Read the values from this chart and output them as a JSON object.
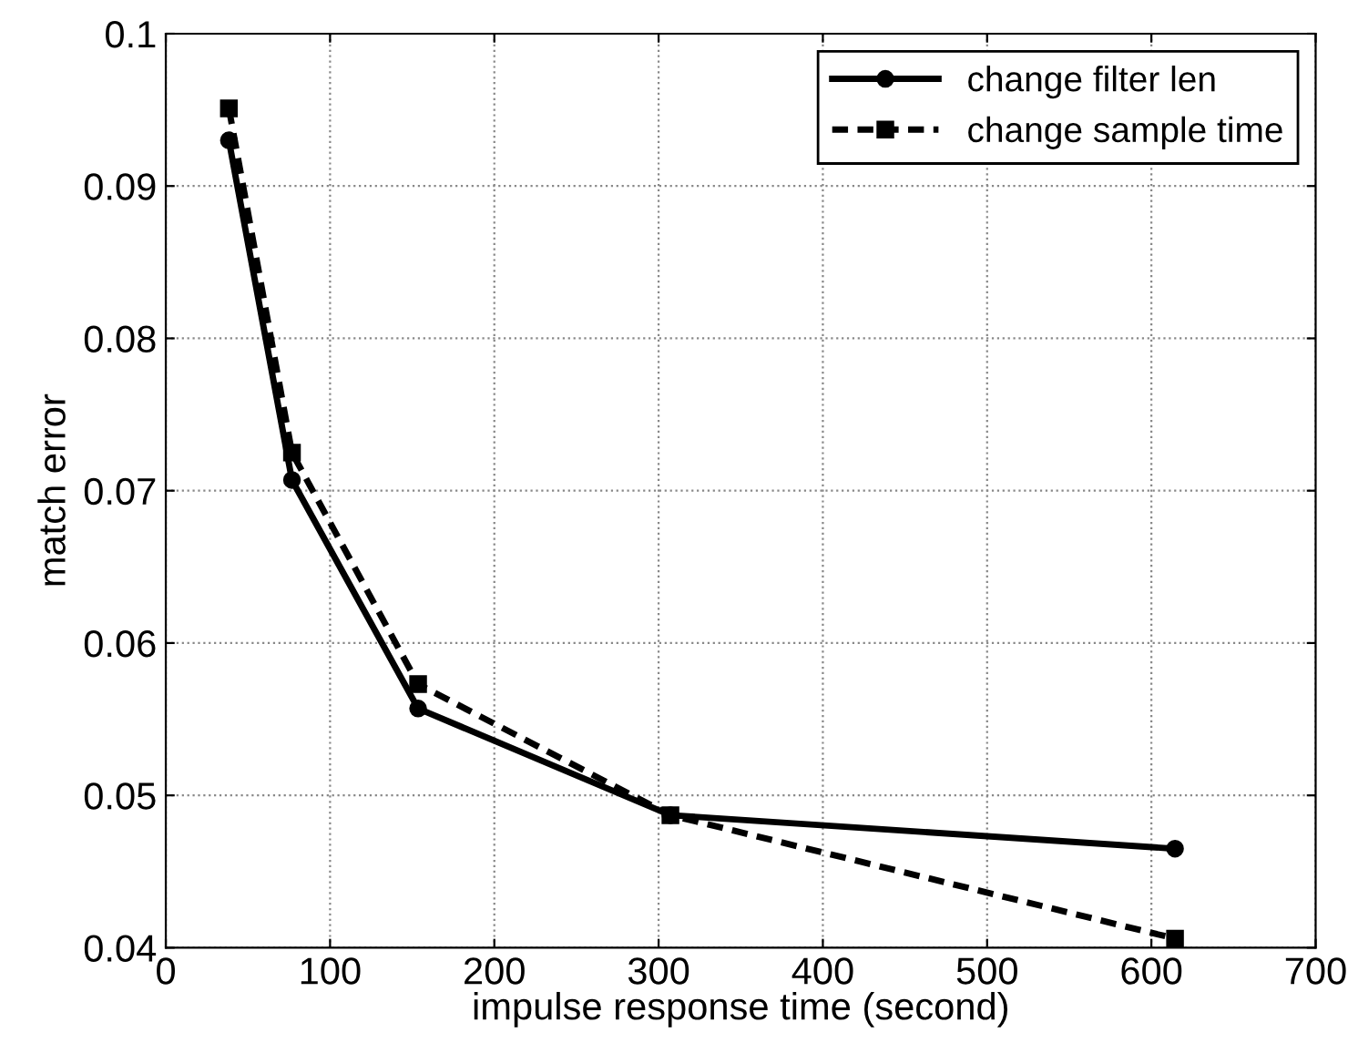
{
  "chart_data": {
    "type": "line",
    "xlabel": "impulse response time (second)",
    "ylabel": "match error",
    "x": [
      38.4,
      76.8,
      153.6,
      307.2,
      614.4
    ],
    "series": [
      {
        "name": "change filter len",
        "color": "#000000",
        "marker": "circle",
        "line_style": "solid",
        "values": [
          0.093,
          0.0707,
          0.0557,
          0.0487,
          0.0465
        ]
      },
      {
        "name": "change sample time",
        "color": "#000000",
        "marker": "square",
        "line_style": "dashed",
        "values": [
          0.0951,
          0.0725,
          0.0573,
          0.0487,
          0.0406
        ]
      }
    ],
    "xlim": [
      0,
      700
    ],
    "ylim": [
      0.04,
      0.1
    ],
    "xticks": [
      0,
      100,
      200,
      300,
      400,
      500,
      600,
      700
    ],
    "yticks": [
      0.04,
      0.05,
      0.06,
      0.07,
      0.08,
      0.09,
      0.1
    ],
    "grid": true,
    "legend": "top right"
  }
}
